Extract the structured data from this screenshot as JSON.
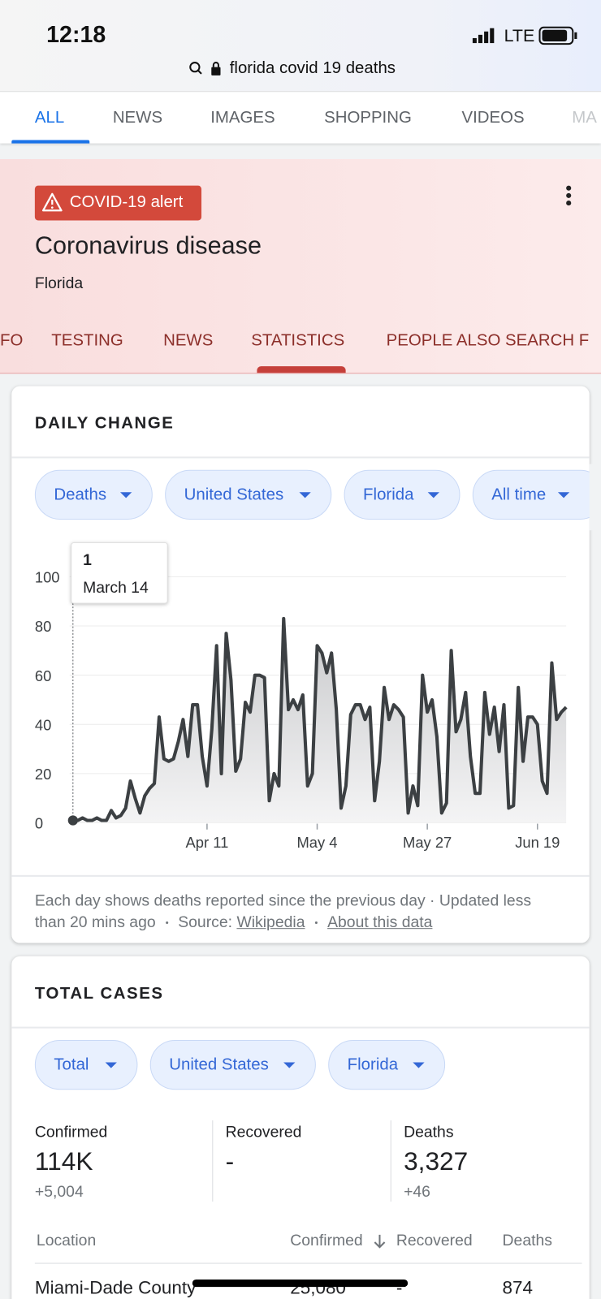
{
  "status_bar": {
    "time": "12:18",
    "network": "LTE"
  },
  "address_bar": {
    "query": "florida covid 19 deaths"
  },
  "tabs": [
    "ALL",
    "NEWS",
    "IMAGES",
    "SHOPPING",
    "VIDEOS",
    "MA"
  ],
  "header": {
    "alert": "COVID-19 alert",
    "title": "Coronavirus disease",
    "subtitle": "Florida"
  },
  "subtabs": [
    "FO",
    "TESTING",
    "NEWS",
    "STATISTICS",
    "PEOPLE ALSO SEARCH F"
  ],
  "daily_change": {
    "heading": "DAILY CHANGE",
    "filters": [
      "Deaths",
      "United States",
      "Florida",
      "All time"
    ],
    "note": "Each day shows deaths reported since the previous day · Updated less than 20 mins ago",
    "source_label": "Source:",
    "source_link": "Wikipedia",
    "about_link": "About this data"
  },
  "chart_data": {
    "type": "line",
    "color": "#3c4043",
    "grid": true,
    "ylim": [
      0,
      100
    ],
    "yticks": [
      0,
      20,
      40,
      60,
      80,
      100
    ],
    "categories": [
      null,
      null,
      null,
      null,
      null,
      null,
      null,
      null,
      null,
      null,
      null,
      null,
      null,
      null,
      null,
      null,
      null,
      null,
      null,
      null,
      null,
      null,
      null,
      null,
      null,
      null,
      null,
      null,
      "Apr 11",
      null,
      null,
      null,
      null,
      null,
      null,
      null,
      null,
      null,
      null,
      null,
      null,
      null,
      null,
      null,
      null,
      null,
      null,
      null,
      null,
      null,
      null,
      "May 4",
      null,
      null,
      null,
      null,
      null,
      null,
      null,
      null,
      null,
      null,
      null,
      null,
      null,
      null,
      null,
      null,
      null,
      null,
      null,
      null,
      null,
      null,
      "May 27",
      null,
      null,
      null,
      null,
      null,
      null,
      null,
      null,
      null,
      null,
      null,
      null,
      null,
      null,
      null,
      null,
      null,
      null,
      null,
      null,
      null,
      null,
      "Jun 19",
      null,
      null,
      null,
      null,
      null,
      null
    ],
    "values": [
      1,
      1,
      2,
      1,
      1,
      2,
      1,
      1,
      5,
      2,
      3,
      6,
      17,
      10,
      4,
      11,
      14,
      16,
      43,
      26,
      25,
      26,
      33,
      42,
      27,
      48,
      48,
      27,
      15,
      38,
      72,
      20,
      77,
      58,
      21,
      26,
      49,
      45,
      60,
      60,
      59,
      9,
      20,
      15,
      83,
      46,
      50,
      46,
      52,
      15,
      20,
      72,
      69,
      61,
      69,
      46,
      6,
      15,
      44,
      48,
      48,
      42,
      47,
      9,
      25,
      55,
      42,
      48,
      46,
      43,
      4,
      15,
      7,
      60,
      45,
      50,
      35,
      4,
      8,
      70,
      37,
      42,
      53,
      27,
      12,
      12,
      53,
      36,
      47,
      29,
      48,
      6,
      7,
      55,
      25,
      43,
      43,
      40,
      17,
      12,
      65,
      42,
      45,
      47
    ],
    "tooltip_date": "March 14"
  },
  "total_cases": {
    "heading": "TOTAL CASES",
    "filters": [
      "Total",
      "United States",
      "Florida"
    ],
    "stats": [
      {
        "label": "Confirmed",
        "value": "114K",
        "change": "+5,004"
      },
      {
        "label": "Recovered",
        "value": "-"
      },
      {
        "label": "Deaths",
        "value": "3,327",
        "change": "+46"
      }
    ],
    "table": {
      "columns": [
        "Location",
        "Confirmed",
        "Recovered",
        "Deaths"
      ],
      "rows": [
        [
          "Miami-Dade County",
          "25,080",
          "-",
          "874"
        ]
      ]
    }
  }
}
